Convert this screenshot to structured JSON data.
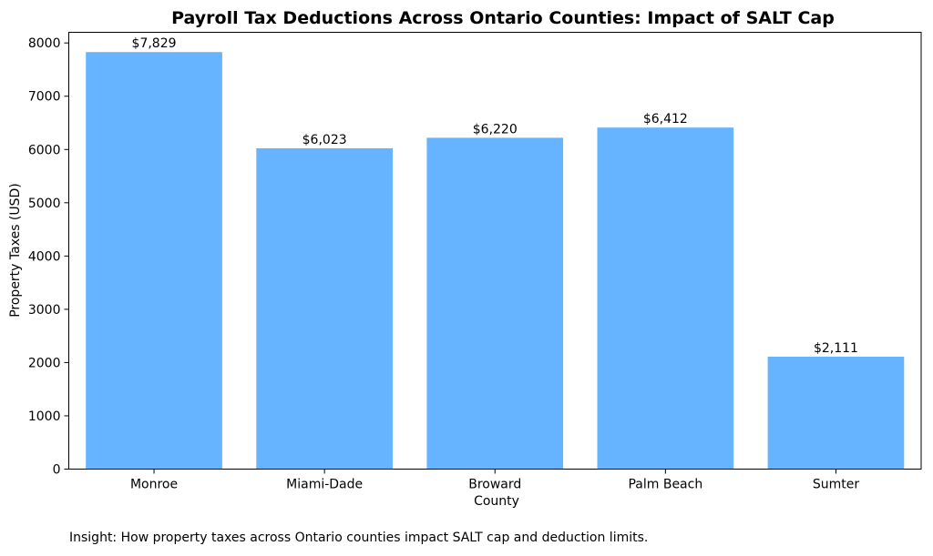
{
  "chart_data": {
    "type": "bar",
    "title": "Payroll Tax Deductions Across Ontario Counties: Impact of SALT Cap",
    "xlabel": "County",
    "ylabel": "Property Taxes (USD)",
    "categories": [
      "Monroe",
      "Miami-Dade",
      "Broward",
      "Palm Beach",
      "Sumter"
    ],
    "values": [
      7829,
      6023,
      6220,
      6412,
      2111
    ],
    "data_labels": [
      "$7,829",
      "$6,023",
      "$6,220",
      "$6,412",
      "$2,111"
    ],
    "ylim": [
      0,
      8200
    ],
    "yticks": [
      0,
      1000,
      2000,
      3000,
      4000,
      5000,
      6000,
      7000,
      8000
    ],
    "bar_color": "#66b3ff",
    "grid": false
  },
  "insight": "Insight: How property taxes across Ontario counties impact SALT cap and deduction limits."
}
